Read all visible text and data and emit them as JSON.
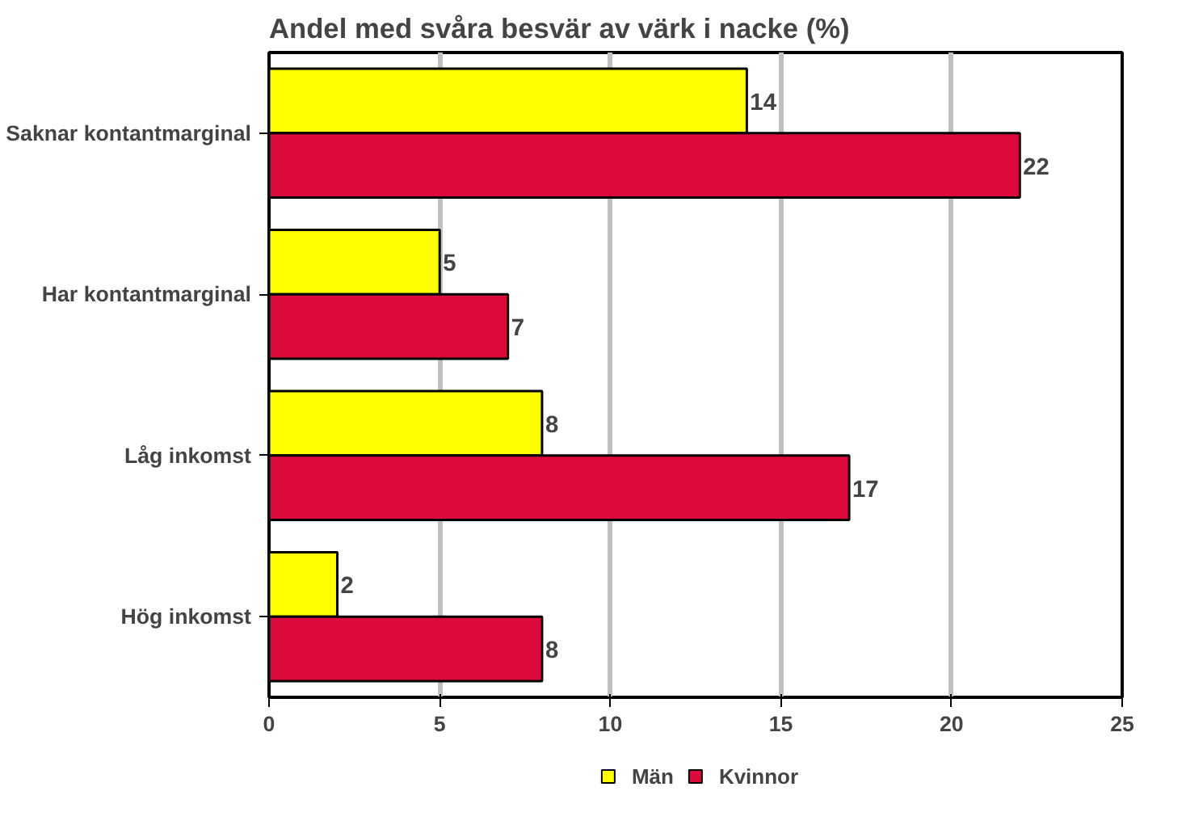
{
  "chart_data": {
    "type": "bar",
    "orientation": "horizontal",
    "title": "Andel med svåra besvär av värk i nacke (%)",
    "categories": [
      "Saknar kontantmarginal",
      "Har kontantmarginal",
      "Låg inkomst",
      "Hög inkomst"
    ],
    "series": [
      {
        "name": "Män",
        "color": "#ffff00",
        "values": [
          14,
          5,
          8,
          2
        ]
      },
      {
        "name": "Kvinnor",
        "color": "#dc0a3c",
        "values": [
          22,
          7,
          17,
          8
        ]
      }
    ],
    "xlim": [
      0,
      25
    ],
    "xticks": [
      0,
      5,
      10,
      15,
      20,
      25
    ],
    "grid": "x",
    "legend": "bottom",
    "data_labels": true
  }
}
